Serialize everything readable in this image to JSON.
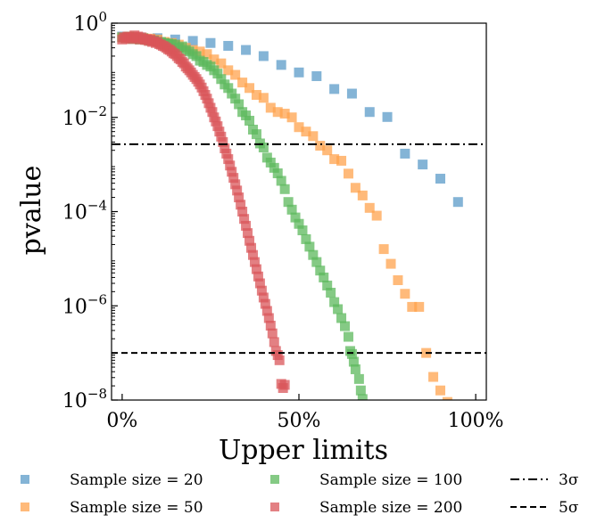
{
  "chart_data": {
    "type": "scatter",
    "xlabel": "Upper limits",
    "ylabel": "pvalue",
    "x_scale": "linear",
    "y_scale": "log",
    "xlim": [
      -0.03,
      1.03
    ],
    "ylim": [
      1e-08,
      1
    ],
    "x_ticks": [
      0,
      0.5,
      1.0
    ],
    "x_tick_labels": [
      "0%",
      "50%",
      "100%"
    ],
    "y_ticks": [
      1e-08,
      1e-06,
      0.0001,
      0.01,
      1
    ],
    "y_tick_bases": [
      "10",
      "10",
      "10",
      "10",
      "10"
    ],
    "y_tick_exponents": [
      "−8",
      "−6",
      "−4",
      "−2",
      "0"
    ],
    "grid": false,
    "legend_position": "below plot, three columns",
    "series": [
      {
        "name": "Sample size = 20",
        "color": "#5b9bc8",
        "marker": "square",
        "points": [
          [
            0.0,
            0.52
          ],
          [
            0.05,
            0.5
          ],
          [
            0.1,
            0.48
          ],
          [
            0.15,
            0.45
          ],
          [
            0.2,
            0.42
          ],
          [
            0.25,
            0.38
          ],
          [
            0.3,
            0.33
          ],
          [
            0.35,
            0.27
          ],
          [
            0.4,
            0.2
          ],
          [
            0.45,
            0.13
          ],
          [
            0.5,
            0.09
          ],
          [
            0.55,
            0.075
          ],
          [
            0.6,
            0.04
          ],
          [
            0.65,
            0.032
          ],
          [
            0.7,
            0.013
          ],
          [
            0.75,
            0.0102
          ],
          [
            0.8,
            0.0017
          ],
          [
            0.85,
            0.001
          ],
          [
            0.9,
            0.0005
          ],
          [
            0.95,
            0.00016
          ]
        ]
      },
      {
        "name": "Sample size = 50",
        "color": "#ffa34d",
        "marker": "square",
        "points": [
          [
            0.0,
            0.5
          ],
          [
            0.02,
            0.52
          ],
          [
            0.04,
            0.5
          ],
          [
            0.06,
            0.48
          ],
          [
            0.08,
            0.47
          ],
          [
            0.1,
            0.45
          ],
          [
            0.12,
            0.4
          ],
          [
            0.14,
            0.38
          ],
          [
            0.16,
            0.35
          ],
          [
            0.18,
            0.3
          ],
          [
            0.2,
            0.27
          ],
          [
            0.22,
            0.25
          ],
          [
            0.24,
            0.22
          ],
          [
            0.26,
            0.17
          ],
          [
            0.28,
            0.14
          ],
          [
            0.3,
            0.1
          ],
          [
            0.32,
            0.08
          ],
          [
            0.34,
            0.055
          ],
          [
            0.36,
            0.042
          ],
          [
            0.38,
            0.03
          ],
          [
            0.4,
            0.026
          ],
          [
            0.42,
            0.016
          ],
          [
            0.44,
            0.013
          ],
          [
            0.46,
            0.012
          ],
          [
            0.48,
            0.01
          ],
          [
            0.5,
            0.0062
          ],
          [
            0.52,
            0.005
          ],
          [
            0.54,
            0.004
          ],
          [
            0.56,
            0.0025
          ],
          [
            0.58,
            0.002
          ],
          [
            0.6,
            0.0013
          ],
          [
            0.62,
            0.0012
          ],
          [
            0.64,
            0.00064
          ],
          [
            0.66,
            0.00032
          ],
          [
            0.68,
            0.00022
          ],
          [
            0.7,
            0.00012
          ],
          [
            0.72,
            8.2e-05
          ],
          [
            0.74,
            1.6e-05
          ],
          [
            0.76,
            7.8e-06
          ],
          [
            0.78,
            3.5e-06
          ],
          [
            0.8,
            1.8e-06
          ],
          [
            0.82,
            9.5e-07
          ],
          [
            0.84,
            9.5e-07
          ],
          [
            0.86,
            1e-07
          ],
          [
            0.88,
            3.1e-08
          ],
          [
            0.9,
            1.6e-08
          ],
          [
            0.92,
            9.1e-09
          ]
        ]
      },
      {
        "name": "Sample size = 100",
        "color": "#5cb85c",
        "marker": "square",
        "points": [
          [
            0.0,
            0.5
          ],
          [
            0.01,
            0.48
          ],
          [
            0.02,
            0.52
          ],
          [
            0.03,
            0.46
          ],
          [
            0.04,
            0.5
          ],
          [
            0.05,
            0.45
          ],
          [
            0.06,
            0.48
          ],
          [
            0.07,
            0.44
          ],
          [
            0.08,
            0.42
          ],
          [
            0.09,
            0.43
          ],
          [
            0.1,
            0.4
          ],
          [
            0.11,
            0.4
          ],
          [
            0.12,
            0.38
          ],
          [
            0.13,
            0.37
          ],
          [
            0.14,
            0.36
          ],
          [
            0.15,
            0.35
          ],
          [
            0.16,
            0.3
          ],
          [
            0.17,
            0.32
          ],
          [
            0.18,
            0.27
          ],
          [
            0.19,
            0.25
          ],
          [
            0.2,
            0.22
          ],
          [
            0.21,
            0.2
          ],
          [
            0.22,
            0.16
          ],
          [
            0.23,
            0.15
          ],
          [
            0.24,
            0.13
          ],
          [
            0.25,
            0.12
          ],
          [
            0.26,
            0.1
          ],
          [
            0.27,
            0.085
          ],
          [
            0.28,
            0.065
          ],
          [
            0.29,
            0.05
          ],
          [
            0.3,
            0.042
          ],
          [
            0.31,
            0.032
          ],
          [
            0.32,
            0.025
          ],
          [
            0.33,
            0.019
          ],
          [
            0.34,
            0.013
          ],
          [
            0.35,
            0.011
          ],
          [
            0.36,
            0.0085
          ],
          [
            0.37,
            0.0055
          ],
          [
            0.38,
            0.0044
          ],
          [
            0.39,
            0.0028
          ],
          [
            0.4,
            0.0023
          ],
          [
            0.41,
            0.0014
          ],
          [
            0.42,
            0.0011
          ],
          [
            0.43,
            0.00085
          ],
          [
            0.44,
            0.00065
          ],
          [
            0.45,
            0.00045
          ],
          [
            0.46,
            0.0003
          ],
          [
            0.47,
            0.00016
          ],
          [
            0.48,
            0.00011
          ],
          [
            0.49,
            7.5e-05
          ],
          [
            0.5,
            5.5e-05
          ],
          [
            0.51,
            4e-05
          ],
          [
            0.52,
            2.6e-05
          ],
          [
            0.53,
            1.8e-05
          ],
          [
            0.54,
            1.2e-05
          ],
          [
            0.55,
            8.5e-06
          ],
          [
            0.56,
            5.6e-06
          ],
          [
            0.57,
            4e-06
          ],
          [
            0.58,
            2.7e-06
          ],
          [
            0.59,
            1.9e-06
          ],
          [
            0.6,
            1.2e-06
          ],
          [
            0.61,
            8.5e-07
          ],
          [
            0.62,
            5.5e-07
          ],
          [
            0.63,
            3.7e-07
          ],
          [
            0.64,
            2.2e-07
          ],
          [
            0.645,
            1.1e-07
          ],
          [
            0.65,
            9.5e-08
          ],
          [
            0.655,
            6.5e-08
          ],
          [
            0.66,
            4.5e-08
          ],
          [
            0.67,
            2.8e-08
          ],
          [
            0.675,
            1.6e-08
          ],
          [
            0.68,
            1.05e-08
          ]
        ]
      },
      {
        "name": "Sample size = 200",
        "color": "#d9555a",
        "marker": "square",
        "points": [
          [
            0.0,
            0.45
          ],
          [
            0.005,
            0.5
          ],
          [
            0.01,
            0.48
          ],
          [
            0.015,
            0.52
          ],
          [
            0.02,
            0.5
          ],
          [
            0.025,
            0.46
          ],
          [
            0.03,
            0.5
          ],
          [
            0.035,
            0.55
          ],
          [
            0.04,
            0.48
          ],
          [
            0.045,
            0.52
          ],
          [
            0.05,
            0.45
          ],
          [
            0.055,
            0.5
          ],
          [
            0.06,
            0.47
          ],
          [
            0.065,
            0.44
          ],
          [
            0.07,
            0.46
          ],
          [
            0.075,
            0.42
          ],
          [
            0.08,
            0.45
          ],
          [
            0.085,
            0.4
          ],
          [
            0.09,
            0.42
          ],
          [
            0.095,
            0.38
          ],
          [
            0.1,
            0.4
          ],
          [
            0.105,
            0.36
          ],
          [
            0.11,
            0.35
          ],
          [
            0.115,
            0.33
          ],
          [
            0.12,
            0.32
          ],
          [
            0.125,
            0.3
          ],
          [
            0.13,
            0.28
          ],
          [
            0.135,
            0.27
          ],
          [
            0.14,
            0.25
          ],
          [
            0.145,
            0.23
          ],
          [
            0.15,
            0.22
          ],
          [
            0.155,
            0.2
          ],
          [
            0.16,
            0.18
          ],
          [
            0.165,
            0.17
          ],
          [
            0.17,
            0.15
          ],
          [
            0.175,
            0.14
          ],
          [
            0.18,
            0.12
          ],
          [
            0.185,
            0.11
          ],
          [
            0.19,
            0.1
          ],
          [
            0.195,
            0.09
          ],
          [
            0.2,
            0.08
          ],
          [
            0.205,
            0.072
          ],
          [
            0.21,
            0.065
          ],
          [
            0.215,
            0.057
          ],
          [
            0.22,
            0.05
          ],
          [
            0.225,
            0.043
          ],
          [
            0.23,
            0.036
          ],
          [
            0.235,
            0.03
          ],
          [
            0.24,
            0.025
          ],
          [
            0.245,
            0.02
          ],
          [
            0.25,
            0.016
          ],
          [
            0.255,
            0.013
          ],
          [
            0.26,
            0.01
          ],
          [
            0.265,
            0.0082
          ],
          [
            0.27,
            0.0065
          ],
          [
            0.275,
            0.005
          ],
          [
            0.28,
            0.0039
          ],
          [
            0.285,
            0.003
          ],
          [
            0.29,
            0.0022
          ],
          [
            0.295,
            0.0017
          ],
          [
            0.3,
            0.0013
          ],
          [
            0.305,
            0.00095
          ],
          [
            0.31,
            0.0007
          ],
          [
            0.315,
            0.00052
          ],
          [
            0.32,
            0.00038
          ],
          [
            0.325,
            0.00028
          ],
          [
            0.33,
            0.0002
          ],
          [
            0.335,
            0.00014
          ],
          [
            0.34,
            0.0001
          ],
          [
            0.345,
            7e-05
          ],
          [
            0.35,
            5e-05
          ],
          [
            0.355,
            3.5e-05
          ],
          [
            0.36,
            2.4e-05
          ],
          [
            0.365,
            1.7e-05
          ],
          [
            0.37,
            1.2e-05
          ],
          [
            0.375,
            8.5e-06
          ],
          [
            0.38,
            6e-06
          ],
          [
            0.385,
            4.2e-06
          ],
          [
            0.39,
            3e-06
          ],
          [
            0.395,
            2.1e-06
          ],
          [
            0.4,
            1.5e-06
          ],
          [
            0.405,
            1.1e-06
          ],
          [
            0.41,
            7.8e-07
          ],
          [
            0.415,
            5.5e-07
          ],
          [
            0.42,
            3.8e-07
          ],
          [
            0.425,
            2.6e-07
          ],
          [
            0.43,
            1.7e-07
          ],
          [
            0.435,
            1.1e-07
          ],
          [
            0.44,
            9e-08
          ],
          [
            0.445,
            7e-08
          ],
          [
            0.45,
            2.2e-08
          ],
          [
            0.455,
            1.8e-08
          ],
          [
            0.46,
            2.1e-08
          ]
        ]
      }
    ],
    "hlines": [
      {
        "name": "3σ",
        "y": 0.0027,
        "style": "dashdot",
        "color": "#000000"
      },
      {
        "name": "5σ",
        "y": 1e-07,
        "style": "dashed",
        "color": "#000000"
      }
    ]
  },
  "legend": {
    "col1": [
      "Sample size = 20",
      "Sample size = 50"
    ],
    "col2": [
      "Sample size = 100",
      "Sample size = 200"
    ],
    "col3": [
      "3σ",
      "5σ"
    ]
  }
}
